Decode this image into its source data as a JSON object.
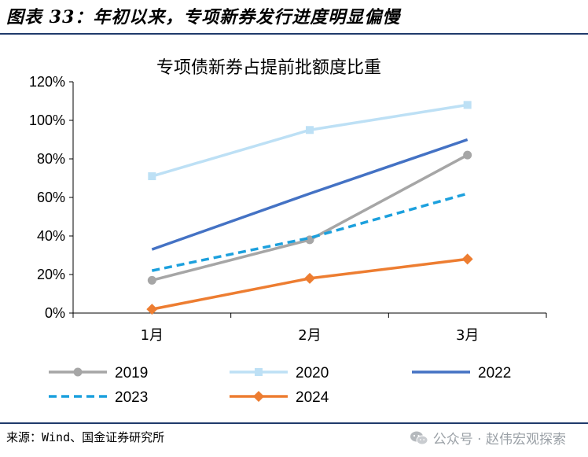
{
  "figure_title": "图表 33：年初以来，专项新券发行进度明显偏慢",
  "source_text": "来源：Wind、国金证券研究所",
  "watermark": {
    "text": "公众号 · 赵伟宏观探索",
    "icon": "wechat-icon"
  },
  "colors": {
    "rule": "#1f3a6b",
    "axis": "#000000"
  },
  "chart_data": {
    "type": "line",
    "title": "专项债新券占提前批额度比重",
    "xlabel": "",
    "ylabel": "",
    "categories": [
      "1月",
      "2月",
      "3月"
    ],
    "ylim": [
      0,
      120
    ],
    "yticks": [
      "0%",
      "20%",
      "40%",
      "60%",
      "80%",
      "100%",
      "120%"
    ],
    "grid": false,
    "legend_position": "bottom",
    "series": [
      {
        "name": "2019",
        "values": [
          17,
          38,
          82
        ],
        "color": "#a6a6a6",
        "dash": "solid",
        "marker": "circle"
      },
      {
        "name": "2020",
        "values": [
          71,
          95,
          108
        ],
        "color": "#bde0f5",
        "dash": "solid",
        "marker": "square"
      },
      {
        "name": "2022",
        "values": [
          33,
          62,
          90
        ],
        "color": "#4472c4",
        "dash": "solid",
        "marker": "none"
      },
      {
        "name": "2023",
        "values": [
          22,
          39,
          62
        ],
        "color": "#1ca0dd",
        "dash": "dashed",
        "marker": "none"
      },
      {
        "name": "2024",
        "values": [
          2,
          18,
          28
        ],
        "color": "#ed7d31",
        "dash": "solid",
        "marker": "diamond"
      }
    ]
  }
}
